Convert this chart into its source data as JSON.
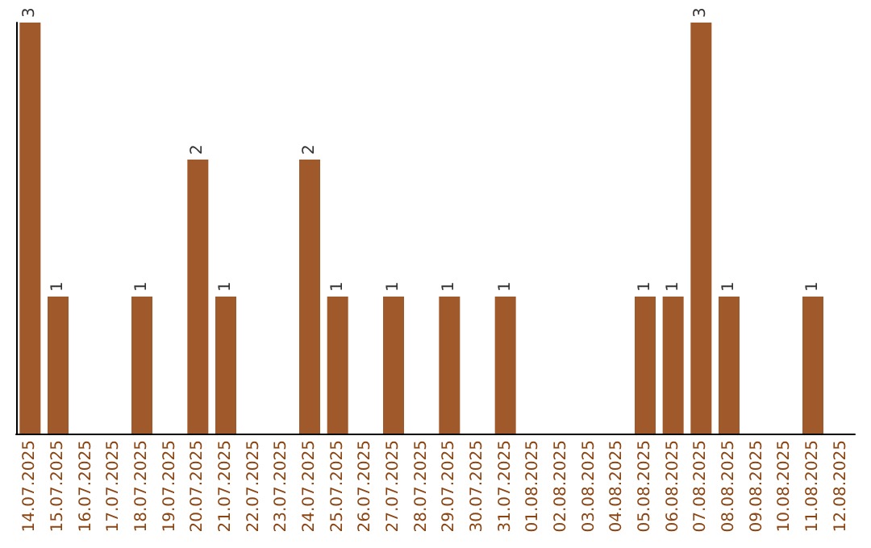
{
  "chart_data": {
    "type": "bar",
    "categories": [
      "14.07.2025",
      "15.07.2025",
      "16.07.2025",
      "17.07.2025",
      "18.07.2025",
      "19.07.2025",
      "20.07.2025",
      "21.07.2025",
      "22.07.2025",
      "23.07.2025",
      "24.07.2025",
      "25.07.2025",
      "26.07.2025",
      "27.07.2025",
      "28.07.2025",
      "29.07.2025",
      "30.07.2025",
      "31.07.2025",
      "01.08.2025",
      "02.08.2025",
      "03.08.2025",
      "04.08.2025",
      "05.08.2025",
      "06.08.2025",
      "07.08.2025",
      "08.08.2025",
      "09.08.2025",
      "10.08.2025",
      "11.08.2025",
      "12.08.2025"
    ],
    "values": [
      3,
      1,
      0,
      0,
      1,
      0,
      2,
      1,
      0,
      0,
      2,
      1,
      0,
      1,
      0,
      1,
      0,
      1,
      0,
      0,
      0,
      0,
      1,
      1,
      3,
      1,
      0,
      0,
      1,
      0
    ],
    "value_labels": [
      "3",
      "1",
      null,
      null,
      "1",
      null,
      "2",
      "1",
      null,
      null,
      "2",
      "1",
      null,
      "1",
      null,
      "1",
      null,
      "1",
      null,
      null,
      null,
      null,
      "1",
      "1",
      "3",
      "1",
      null,
      null,
      "1",
      null
    ],
    "color": "#a0592a",
    "tick_labels": "x"
  }
}
